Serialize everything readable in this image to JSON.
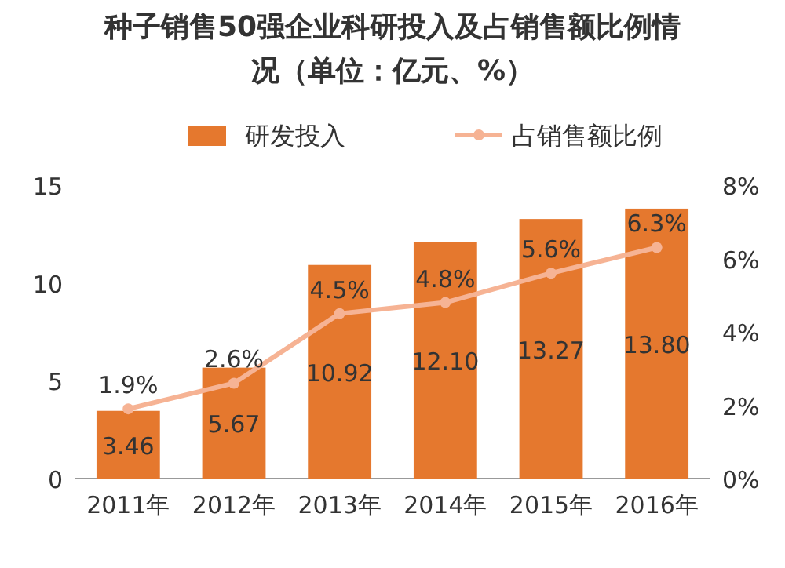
{
  "chart_data": {
    "type": "bar",
    "title": "种子销售50强企业科研投入及占销售额比例情况（单位：亿元、%）",
    "categories": [
      "2011年",
      "2012年",
      "2013年",
      "2014年",
      "2015年",
      "2016年"
    ],
    "series": [
      {
        "name": "研发投入",
        "color": "#e5782e",
        "values": [
          3.46,
          5.67,
          10.92,
          12.1,
          13.27,
          13.8
        ],
        "value_labels": [
          "3.46",
          "5.67",
          "10.92",
          "12.10",
          "13.27",
          "13.80"
        ]
      },
      {
        "name": "占销售额比例",
        "type": "line",
        "axis": "y2",
        "color": "#f6b394",
        "values": [
          1.9,
          2.6,
          4.5,
          4.8,
          5.6,
          6.3
        ],
        "value_labels": [
          "1.9%",
          "2.6%",
          "4.5%",
          "4.8%",
          "5.6%",
          "6.3%"
        ]
      }
    ],
    "ylim": [
      0,
      15
    ],
    "yticks": [
      0,
      5,
      10,
      15
    ],
    "y2lim": [
      0,
      8
    ],
    "y2ticks": [
      {
        "value": 0,
        "label": "0%"
      },
      {
        "value": 2,
        "label": "2%"
      },
      {
        "value": 4,
        "label": "4%"
      },
      {
        "value": 6,
        "label": "6%"
      },
      {
        "value": 8,
        "label": "8%"
      }
    ],
    "legend": "top",
    "marker": "circle",
    "grid": false
  }
}
